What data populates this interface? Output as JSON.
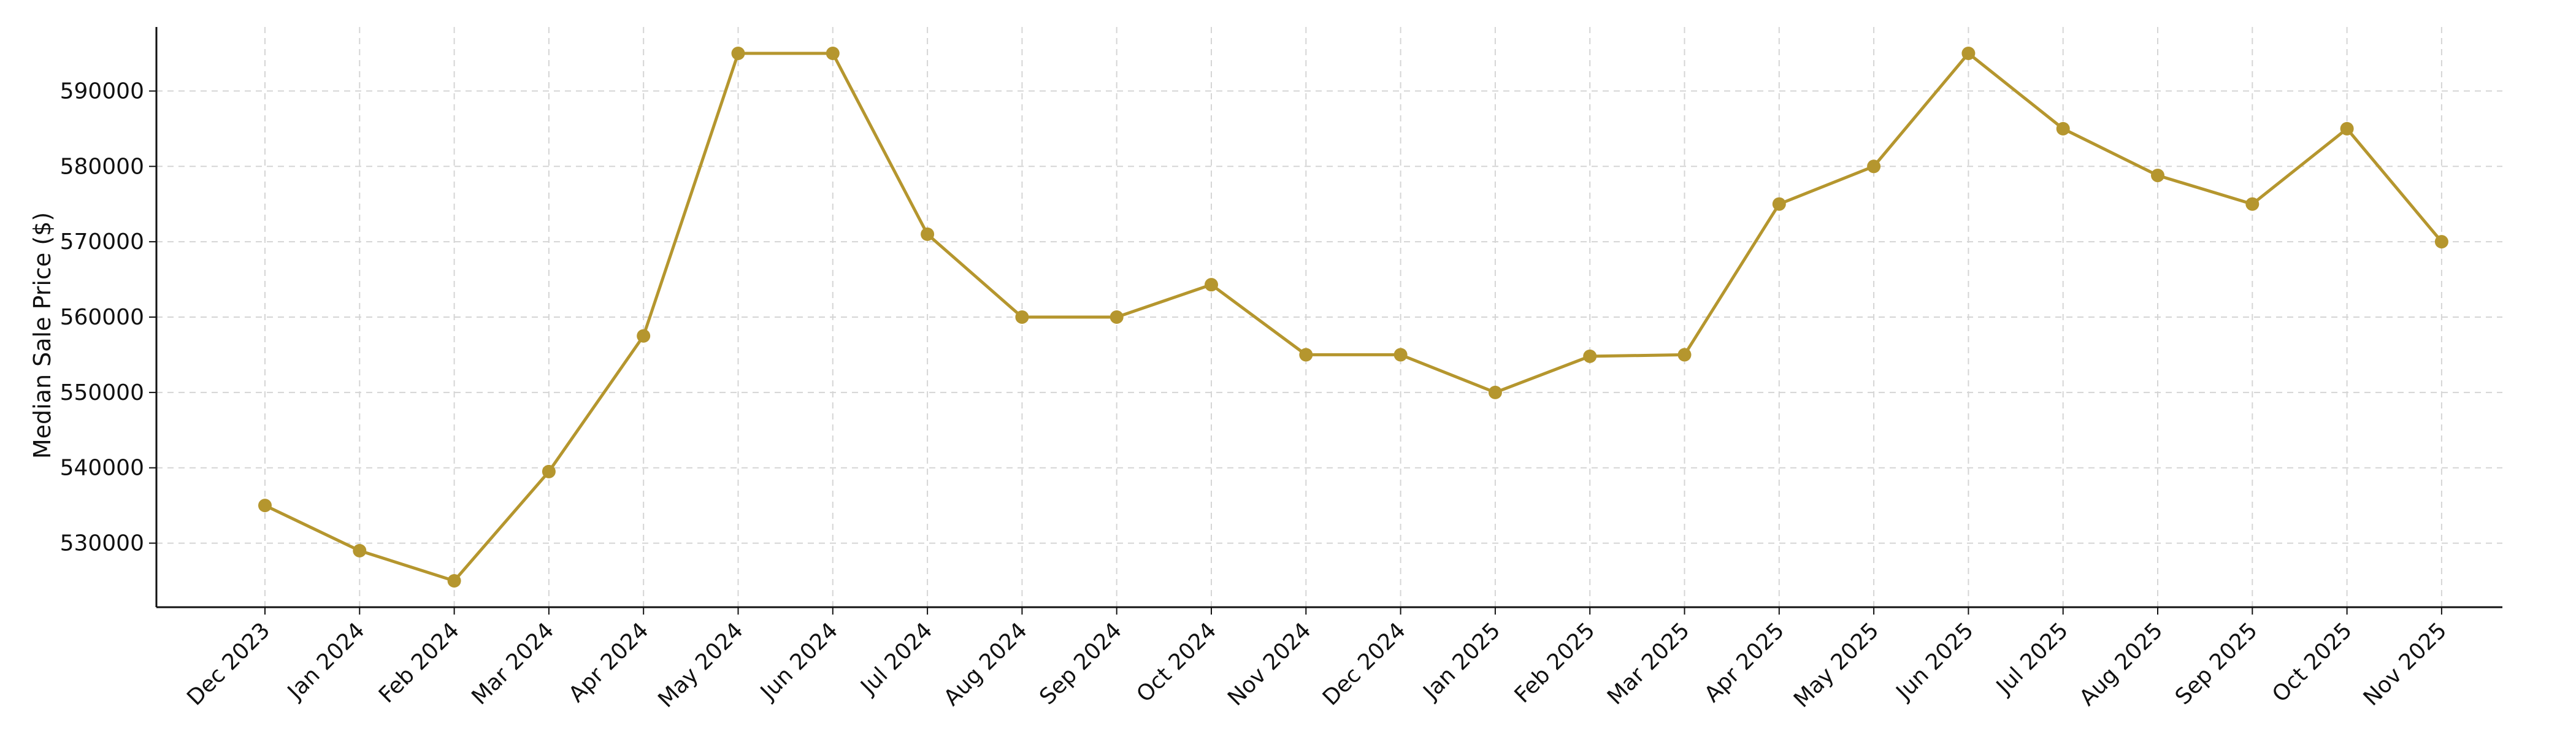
{
  "chart_data": {
    "type": "line",
    "title": "",
    "xlabel": "",
    "ylabel": "Median Sale Price ($)",
    "categories": [
      "Dec 2023",
      "Jan 2024",
      "Feb 2024",
      "Mar 2024",
      "Apr 2024",
      "May 2024",
      "Jun 2024",
      "Jul 2024",
      "Aug 2024",
      "Sep 2024",
      "Oct 2024",
      "Nov 2024",
      "Dec 2024",
      "Jan 2025",
      "Feb 2025",
      "Mar 2025",
      "Apr 2025",
      "May 2025",
      "Jun 2025",
      "Jul 2025",
      "Aug 2025",
      "Sep 2025",
      "Oct 2025",
      "Nov 2025"
    ],
    "series": [
      {
        "values": [
          535000,
          529000,
          525000,
          539500,
          557500,
          595000,
          595000,
          571000,
          560000,
          560000,
          564300,
          555000,
          555000,
          550000,
          554800,
          555000,
          575000,
          580000,
          595000,
          585000,
          578800,
          575000,
          585000,
          570000
        ]
      }
    ],
    "yticks": [
      530000,
      540000,
      550000,
      560000,
      570000,
      580000,
      590000
    ],
    "ylim": [
      521500,
      598500
    ],
    "grid": true,
    "legend": "none",
    "colors": {
      "line": "#b5962e",
      "grid": "#d5d5d5",
      "axis": "#111111"
    }
  }
}
